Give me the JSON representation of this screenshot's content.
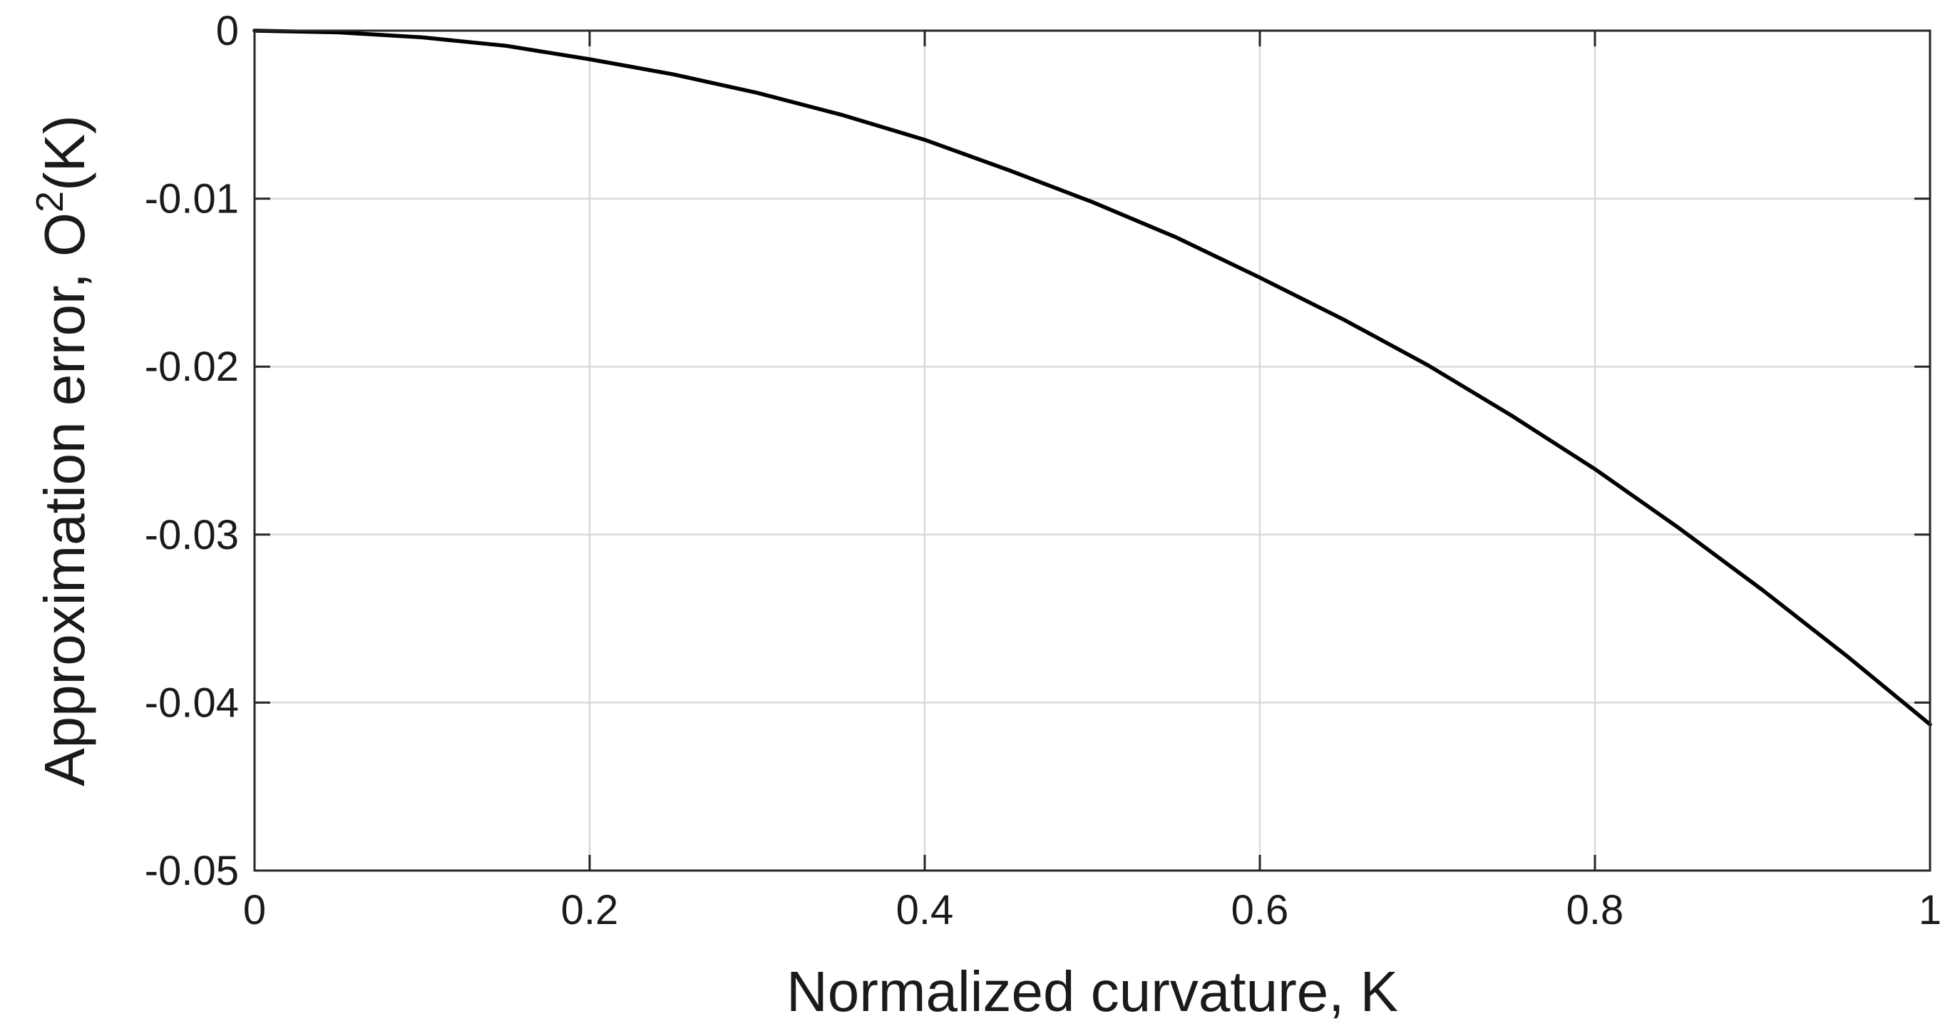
{
  "chart_data": {
    "type": "line",
    "title": "",
    "xlabel": "Normalized curvature, K",
    "ylabel_main": "Approximation error, O",
    "ylabel_sup": "2",
    "ylabel_tail": "(K)",
    "xlim": [
      0,
      1
    ],
    "ylim": [
      -0.05,
      0
    ],
    "grid": true,
    "xticks": [
      0,
      0.2,
      0.4,
      0.6,
      0.8,
      1
    ],
    "xtick_labels": [
      "0",
      "0.2",
      "0.4",
      "0.6",
      "0.8",
      "1"
    ],
    "yticks": [
      0,
      -0.01,
      -0.02,
      -0.03,
      -0.04,
      -0.05
    ],
    "ytick_labels": [
      "0",
      "-0.01",
      "-0.02",
      "-0.03",
      "-0.04",
      "-0.05"
    ],
    "series": [
      {
        "color": "#000000",
        "x": [
          0,
          0.05,
          0.1,
          0.15,
          0.2,
          0.25,
          0.3,
          0.35,
          0.4,
          0.45,
          0.5,
          0.55,
          0.6,
          0.65,
          0.7,
          0.75,
          0.8,
          0.85,
          0.9,
          0.95,
          1.0
        ],
        "y": [
          0,
          -0.0001,
          -0.0004,
          -0.0009,
          -0.0017,
          -0.0026,
          -0.0037,
          -0.005,
          -0.0065,
          -0.0083,
          -0.0102,
          -0.0123,
          -0.0147,
          -0.0172,
          -0.0199,
          -0.0229,
          -0.0261,
          -0.0296,
          -0.0333,
          -0.0372,
          -0.0413
        ]
      }
    ]
  }
}
